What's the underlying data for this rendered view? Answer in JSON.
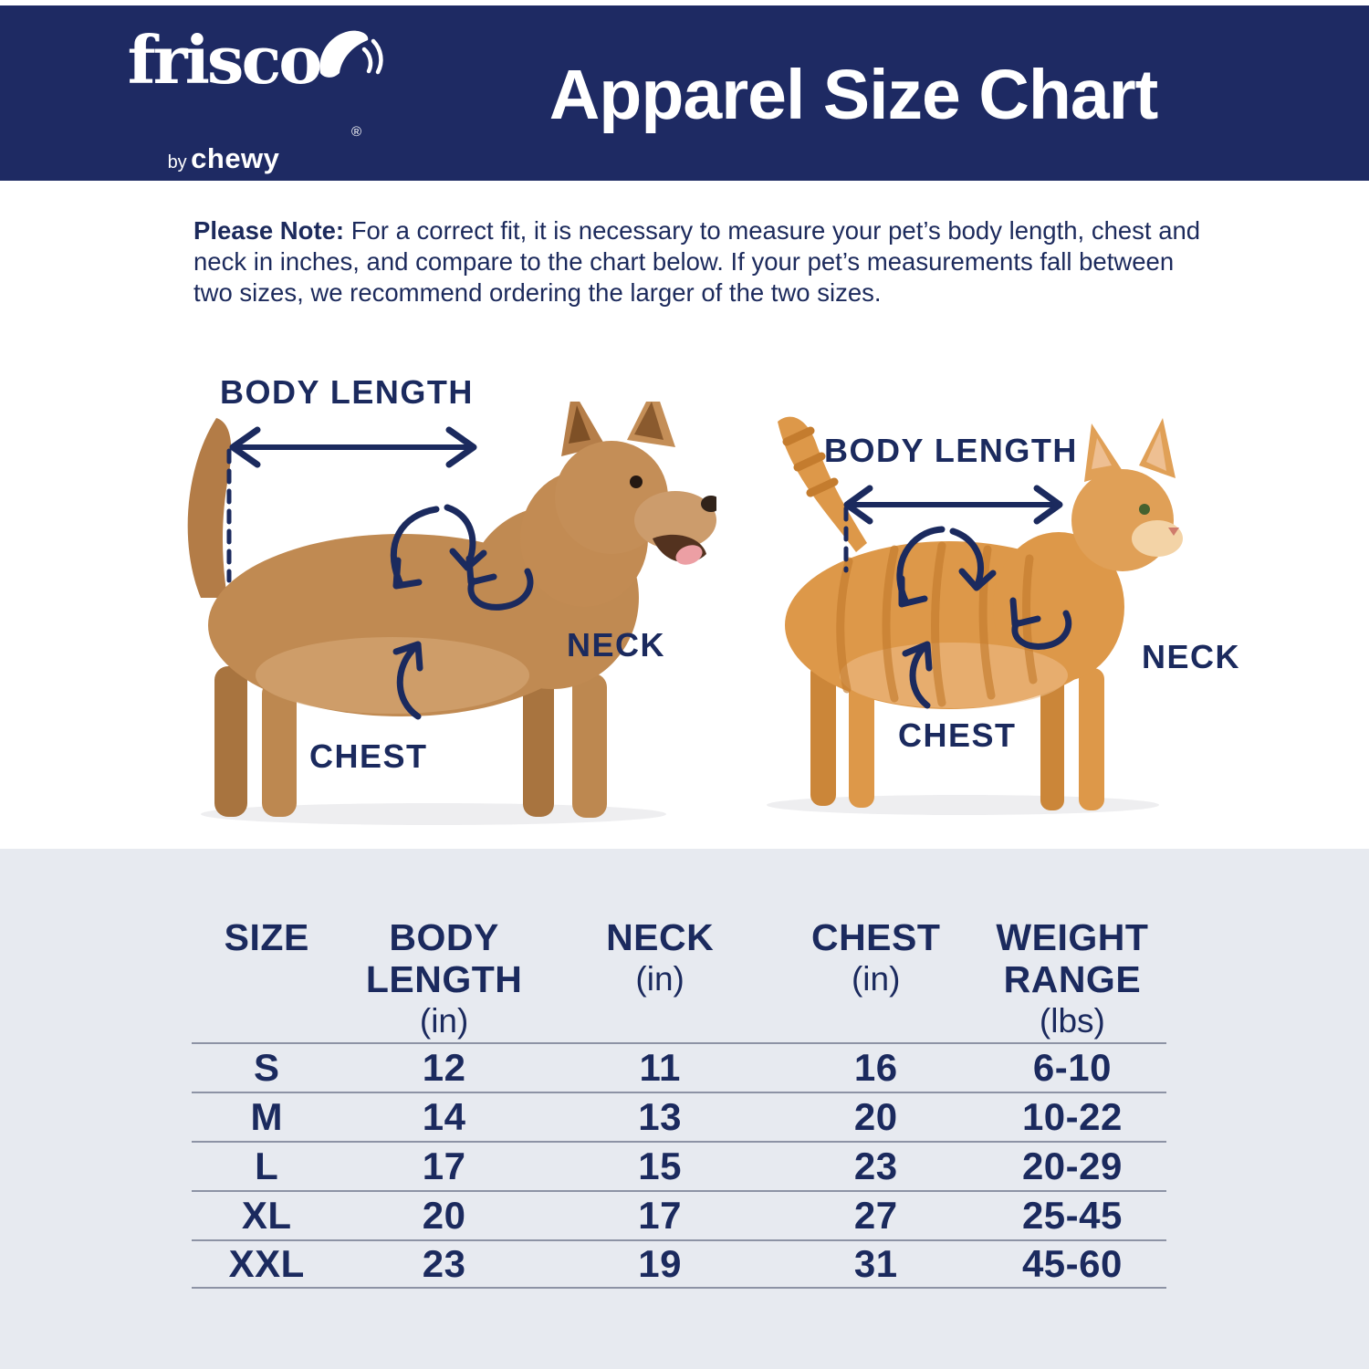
{
  "header": {
    "logo": {
      "brand": "frisco",
      "registered": "®",
      "by": "by",
      "by_brand": "chewy"
    },
    "title": "Apparel Size Chart"
  },
  "note": {
    "label": "Please Note:",
    "text": " For a correct fit, it is necessary to measure your pet’s body length, chest and neck in inches, and compare to the chart below. If your pet’s measurements fall between two sizes, we recommend ordering the larger of the two sizes."
  },
  "diagram": {
    "dog": {
      "body_length_label": "BODY LENGTH",
      "neck_label": "NECK",
      "chest_label": "CHEST"
    },
    "cat": {
      "body_length_label": "BODY LENGTH",
      "neck_label": "NECK",
      "chest_label": "CHEST"
    }
  },
  "size_table": {
    "columns": [
      {
        "title": "SIZE",
        "unit": ""
      },
      {
        "title": "BODY LENGTH",
        "unit": "(in)"
      },
      {
        "title": "NECK",
        "unit": "(in)"
      },
      {
        "title": "CHEST",
        "unit": "(in)"
      },
      {
        "title": "WEIGHT RANGE",
        "unit": "(lbs)"
      }
    ],
    "rows": [
      {
        "size": "S",
        "body_length": "12",
        "neck": "11",
        "chest": "16",
        "weight_range": "6-10"
      },
      {
        "size": "M",
        "body_length": "14",
        "neck": "13",
        "chest": "20",
        "weight_range": "10-22"
      },
      {
        "size": "L",
        "body_length": "17",
        "neck": "15",
        "chest": "23",
        "weight_range": "20-29"
      },
      {
        "size": "XL",
        "body_length": "20",
        "neck": "17",
        "chest": "27",
        "weight_range": "25-45"
      },
      {
        "size": "XXL",
        "body_length": "23",
        "neck": "19",
        "chest": "31",
        "weight_range": "45-60"
      }
    ]
  },
  "colors": {
    "navy": "#1e2a63",
    "annotation_navy": "#1b2a5e",
    "panel_bg": "#e7eaf0",
    "table_line": "#8d93a5",
    "dog_coat": "#c08a52",
    "cat_coat": "#dd9849"
  }
}
